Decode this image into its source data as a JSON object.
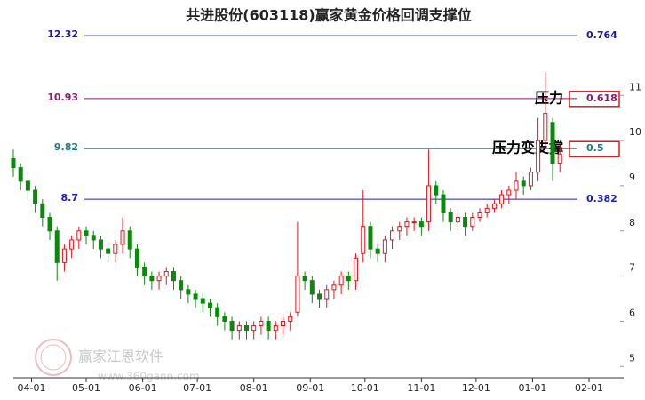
{
  "chart_data": {
    "type": "candlestick",
    "title": "共进股份(603118)赢家黄金价格回调支撑位",
    "watermark": "赢家江恩软件",
    "watermark_url": "www.360gann.com",
    "up_color": "#e8141a",
    "down_color": "#0a8a0a",
    "xlim": [
      0,
      335
    ],
    "xticks": [
      {
        "value": 10,
        "label": "04-01"
      },
      {
        "value": 40,
        "label": "05-01"
      },
      {
        "value": 71,
        "label": "06-01"
      },
      {
        "value": 101,
        "label": "07-01"
      },
      {
        "value": 132,
        "label": "08-01"
      },
      {
        "value": 163,
        "label": "09-01"
      },
      {
        "value": 193,
        "label": "10-01"
      },
      {
        "value": 224,
        "label": "11-01"
      },
      {
        "value": 254,
        "label": "12-01"
      },
      {
        "value": 285,
        "label": "01-01"
      },
      {
        "value": 316,
        "label": "02-01"
      }
    ],
    "ylim": [
      4.75,
      12.5
    ],
    "yticks": [
      5,
      6,
      7,
      8,
      9,
      10,
      11
    ],
    "x": [
      0,
      4,
      8,
      12,
      16,
      20,
      24,
      28,
      32,
      36,
      40,
      44,
      48,
      52,
      56,
      60,
      64,
      68,
      72,
      76,
      80,
      84,
      88,
      92,
      96,
      100,
      104,
      108,
      112,
      116,
      120,
      124,
      128,
      132,
      136,
      140,
      144,
      148,
      152,
      156,
      160,
      164,
      168,
      172,
      176,
      180,
      184,
      188,
      192,
      196,
      200,
      204,
      208,
      212,
      216,
      220,
      224,
      228,
      232,
      236,
      240,
      244,
      248,
      252,
      256,
      260,
      264,
      268,
      272,
      276,
      280,
      284,
      288,
      292,
      296,
      300
    ],
    "open": [
      9.6,
      9.4,
      9.1,
      8.9,
      8.6,
      8.3,
      8.0,
      7.3,
      7.6,
      7.8,
      8.0,
      7.9,
      7.8,
      7.6,
      7.5,
      7.7,
      8.0,
      7.6,
      7.2,
      7.0,
      6.9,
      7.0,
      7.1,
      6.9,
      6.7,
      6.6,
      6.5,
      6.4,
      6.3,
      6.1,
      6.0,
      5.8,
      5.9,
      5.8,
      5.9,
      6.0,
      5.8,
      5.9,
      6.0,
      6.2,
      7.0,
      6.9,
      6.6,
      6.5,
      6.7,
      6.8,
      7.0,
      6.9,
      7.5,
      8.1,
      7.6,
      7.5,
      7.8,
      8.0,
      8.1,
      8.2,
      8.2,
      8.2,
      9.0,
      8.8,
      8.4,
      8.2,
      8.3,
      8.1,
      8.3,
      8.4,
      8.5,
      8.6,
      8.8,
      8.9,
      9.1,
      9.0,
      9.3,
      10.0,
      10.4,
      9.5
    ],
    "high": [
      9.8,
      9.5,
      9.3,
      9.0,
      8.7,
      8.4,
      8.1,
      7.7,
      7.9,
      8.1,
      8.1,
      8.0,
      7.9,
      7.7,
      7.8,
      8.3,
      8.1,
      7.7,
      7.3,
      7.1,
      7.1,
      7.2,
      7.2,
      7.0,
      6.8,
      6.7,
      6.6,
      6.5,
      6.4,
      6.2,
      6.1,
      6.0,
      6.0,
      6.0,
      6.1,
      6.1,
      6.0,
      6.1,
      6.2,
      8.2,
      7.1,
      7.0,
      6.7,
      6.8,
      6.9,
      7.1,
      7.1,
      7.5,
      8.9,
      8.2,
      7.7,
      7.9,
      8.1,
      8.2,
      8.3,
      8.3,
      8.3,
      9.8,
      9.1,
      8.9,
      8.5,
      8.4,
      8.4,
      8.4,
      8.5,
      8.6,
      8.7,
      8.9,
      9.0,
      9.3,
      9.2,
      9.4,
      10.5,
      11.5,
      10.5,
      9.9
    ],
    "low": [
      9.2,
      8.9,
      8.7,
      8.4,
      8.1,
      7.8,
      6.9,
      7.1,
      7.4,
      7.6,
      7.7,
      7.6,
      7.4,
      7.3,
      7.3,
      7.5,
      7.4,
      7.0,
      6.8,
      6.7,
      6.7,
      6.8,
      6.7,
      6.5,
      6.4,
      6.3,
      6.2,
      6.1,
      5.9,
      5.8,
      5.6,
      5.6,
      5.6,
      5.6,
      5.7,
      5.6,
      5.6,
      5.7,
      5.8,
      6.1,
      6.7,
      6.4,
      6.3,
      6.3,
      6.5,
      6.6,
      6.7,
      6.7,
      7.3,
      7.4,
      7.3,
      7.3,
      7.6,
      7.8,
      7.9,
      8.0,
      7.9,
      8.0,
      8.6,
      8.2,
      8.0,
      8.0,
      7.9,
      8.0,
      8.2,
      8.3,
      8.4,
      8.5,
      8.6,
      8.7,
      8.8,
      8.9,
      9.1,
      9.8,
      9.1,
      9.3
    ],
    "close": [
      9.4,
      9.1,
      8.9,
      8.6,
      8.3,
      8.0,
      7.3,
      7.6,
      7.8,
      8.0,
      7.9,
      7.8,
      7.6,
      7.5,
      7.7,
      8.0,
      7.6,
      7.2,
      7.0,
      6.9,
      7.0,
      7.1,
      6.9,
      6.7,
      6.6,
      6.5,
      6.4,
      6.3,
      6.1,
      6.0,
      5.8,
      5.9,
      5.8,
      5.9,
      6.0,
      5.8,
      5.9,
      6.0,
      6.1,
      7.0,
      6.9,
      6.6,
      6.5,
      6.7,
      6.8,
      7.0,
      6.9,
      7.4,
      8.1,
      7.6,
      7.5,
      7.8,
      8.0,
      8.1,
      8.2,
      8.2,
      8.1,
      9.0,
      8.8,
      8.4,
      8.2,
      8.3,
      8.1,
      8.3,
      8.4,
      8.5,
      8.6,
      8.8,
      8.9,
      9.1,
      9.0,
      9.3,
      10.0,
      10.6,
      9.5,
      9.7
    ],
    "levels": [
      {
        "value": 12.32,
        "ratio": 0.764,
        "color": "#1a1a9c",
        "ratio_color": "#1a1a9c",
        "boxed": false
      },
      {
        "value": 10.93,
        "ratio": 0.618,
        "color": "#8b1a6b",
        "ratio_color": "#8b1a6b",
        "boxed": true,
        "note": "压力"
      },
      {
        "value": 9.82,
        "ratio": 0.5,
        "color": "#1a8080",
        "ratio_color": "#1a8080",
        "boxed": true,
        "note": "压力变支撑"
      },
      {
        "value": 8.7,
        "ratio": 0.382,
        "color": "#1a1acc",
        "ratio_color": "#1a1acc",
        "boxed": false
      }
    ]
  }
}
